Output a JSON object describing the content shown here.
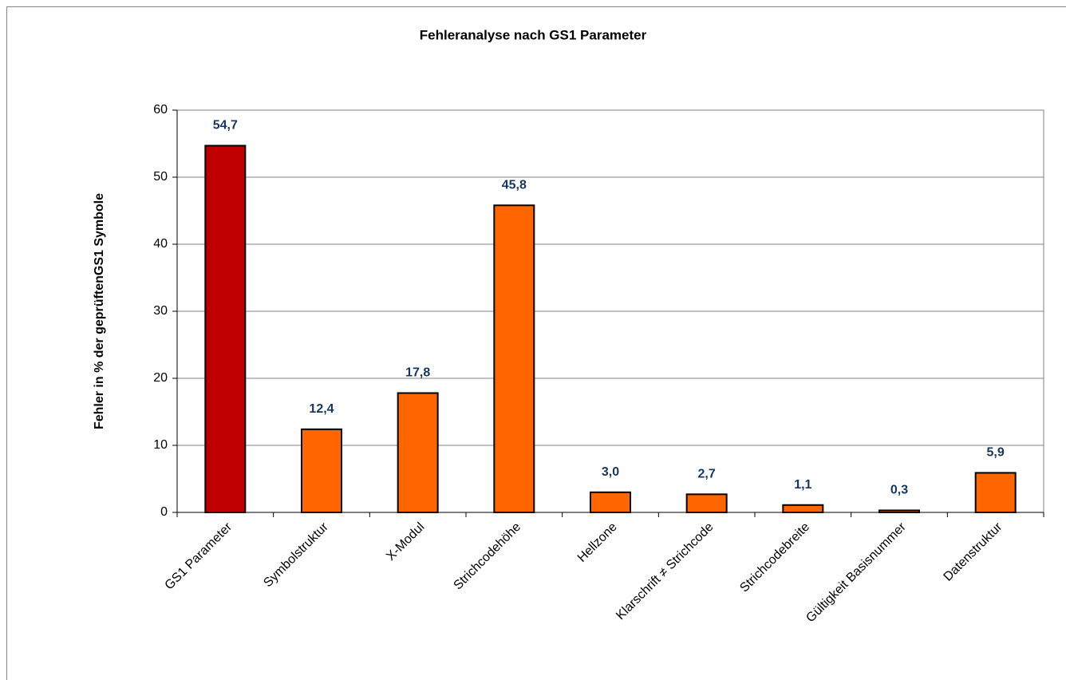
{
  "chart_data": {
    "type": "bar",
    "title": "Fehleranalyse nach GS1 Parameter",
    "y_label": "Fehler in % der geprüftenGS1  Symbole",
    "categories": [
      "GS1 Parameter",
      "Symbolstruktur",
      "X-Modul",
      "Strichcodehöhe",
      "Hellzone",
      "Klarschrift ≠ Strichcode",
      "Strichcodebreite",
      "Gültigkeit Basisnummer",
      "Datenstruktur"
    ],
    "values": [
      54.7,
      12.4,
      17.8,
      45.8,
      3.0,
      2.7,
      1.1,
      0.3,
      5.9
    ],
    "value_labels": [
      "54,7",
      "12,4",
      "17,8",
      "45,8",
      "3,0",
      "2,7",
      "1,1",
      "0,3",
      "5,9"
    ],
    "colors": [
      "#c00000",
      "#ff6600",
      "#ff6600",
      "#ff6600",
      "#ff6600",
      "#ff6600",
      "#ff6600",
      "#ff6600",
      "#ff6600"
    ],
    "ylim": [
      0,
      60
    ],
    "yticks": [
      0,
      10,
      20,
      30,
      40,
      50,
      60
    ],
    "grid": true
  }
}
